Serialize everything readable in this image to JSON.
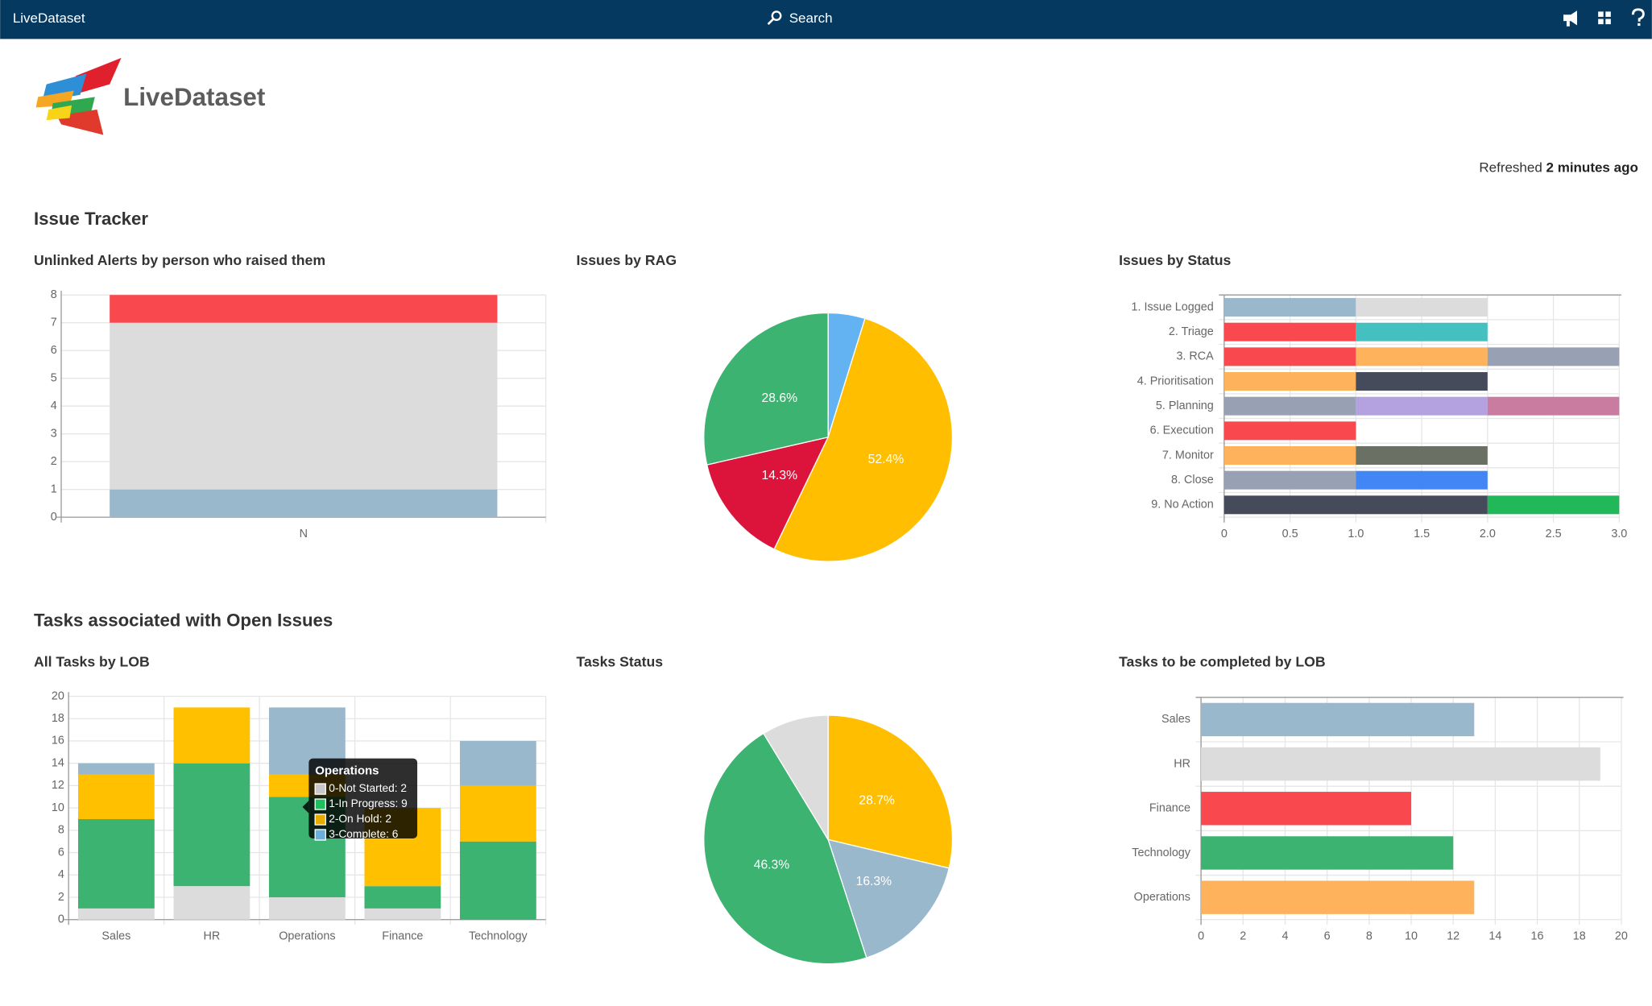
{
  "header": {
    "app": "LiveDataset",
    "search": "Search"
  },
  "logo": {
    "text": "LiveDataset"
  },
  "refreshed": {
    "prefix": "Refreshed",
    "age": "2 minutes ago"
  },
  "sections": [
    "Issue Tracker",
    "Tasks associated with Open Issues"
  ],
  "chart_data": [
    {
      "type": "stacked_bar",
      "title": "Unlinked Alerts by person who raised them",
      "categories": [
        "N"
      ],
      "series": [
        {
          "color": "#9ab8cc",
          "values": [
            1
          ]
        },
        {
          "color": "#dcdcdc",
          "values": [
            6
          ]
        },
        {
          "color": "#f9494f",
          "values": [
            1
          ]
        }
      ],
      "ylim": [
        0,
        8
      ],
      "yticks": [
        0,
        1,
        2,
        3,
        4,
        5,
        6,
        7,
        8
      ],
      "grid": true
    },
    {
      "type": "pie",
      "title": "Issues by RAG",
      "values": [
        4.8,
        52.4,
        14.3,
        28.6
      ],
      "value_labels": [
        null,
        "52.4%",
        "14.3%",
        "28.6%"
      ],
      "colors": [
        "#63b2f2",
        "#ffbf00",
        "#dc143c",
        "#3cb371"
      ]
    },
    {
      "type": "stacked_barh",
      "title": "Issues by Status",
      "categories": [
        "1. Issue Logged",
        "2. Triage",
        "3. RCA",
        "4. Prioritisation",
        "5. Planning",
        "6. Execution",
        "7. Monitor",
        "8. Close",
        "9. No Action"
      ],
      "segments": [
        [
          1,
          1
        ],
        [
          1,
          1
        ],
        [
          1,
          1,
          1
        ],
        [
          1,
          1
        ],
        [
          1,
          1,
          1
        ],
        [
          1
        ],
        [
          1,
          1
        ],
        [
          1,
          1
        ],
        [
          2,
          1
        ]
      ],
      "colors": [
        [
          "#9ab8cc",
          "#dcdcdc"
        ],
        [
          "#f9494f",
          "#45c0c0"
        ],
        [
          "#f9494f",
          "#fdb25b",
          "#97a1b3"
        ],
        [
          "#fdb25b",
          "#464b5b"
        ],
        [
          "#97a1b3",
          "#b3a1e0",
          "#c97ba0"
        ],
        [
          "#f9494f"
        ],
        [
          "#fdb25b",
          "#6b7065"
        ],
        [
          "#97a1b3",
          "#4285f4"
        ],
        [
          "#464b5b",
          "#20b858"
        ]
      ],
      "xlim": [
        0,
        3
      ],
      "xticks": [
        0,
        0.5,
        {
          "value": 1,
          "label": "1.0"
        },
        1.5,
        {
          "value": 2,
          "label": "2.0"
        },
        2.5,
        {
          "value": 3,
          "label": "3.0"
        }
      ],
      "grid": true
    },
    {
      "type": "stacked_bar",
      "title": "All Tasks by LOB",
      "categories": [
        "Sales",
        "HR",
        "Operations",
        "Finance",
        "Technology"
      ],
      "series": [
        {
          "color": "#dcdcdc",
          "values": [
            1,
            3,
            2,
            1,
            0
          ]
        },
        {
          "color": "#3cb371",
          "values": [
            8,
            11,
            9,
            2,
            7
          ]
        },
        {
          "color": "#ffc000",
          "values": [
            4,
            5,
            2,
            7,
            5
          ]
        },
        {
          "color": "#9ab8cc",
          "values": [
            1,
            0,
            6,
            0,
            4
          ]
        }
      ],
      "ylim": [
        0,
        20
      ],
      "yticks": [
        0,
        2,
        4,
        6,
        8,
        10,
        12,
        14,
        16,
        18,
        20
      ],
      "grid": true,
      "tooltip": {
        "title": "Operations",
        "items": [
          {
            "label": "0-Not Started: 2",
            "color": "#c8c8c8"
          },
          {
            "label": "1-In Progress: 9",
            "color": "#1fbf60"
          },
          {
            "label": "2-On Hold: 2",
            "color": "#e6ac00"
          },
          {
            "label": "3-Complete: 6",
            "color": "#6ab0d8"
          }
        ]
      }
    },
    {
      "type": "pie",
      "title": "Tasks Status",
      "values": [
        28.7,
        16.3,
        46.3,
        8.7
      ],
      "value_labels": [
        "28.7%",
        "16.3%",
        "46.3%",
        null
      ],
      "colors": [
        "#ffbf00",
        "#9ab8cc",
        "#3cb371",
        "#dcdcdc"
      ]
    },
    {
      "type": "barh",
      "title": "Tasks to be completed by LOB",
      "categories": [
        "Sales",
        "HR",
        "Finance",
        "Technology",
        "Operations"
      ],
      "values": [
        13,
        19,
        10,
        12,
        13
      ],
      "colors": [
        "#9ab8cc",
        "#dcdcdc",
        "#f9494f",
        "#3cb371",
        "#fdb25b"
      ],
      "xlim": [
        0,
        20
      ],
      "xticks": [
        0,
        2,
        4,
        6,
        8,
        10,
        12,
        14,
        16,
        18,
        20
      ],
      "grid": true
    }
  ]
}
